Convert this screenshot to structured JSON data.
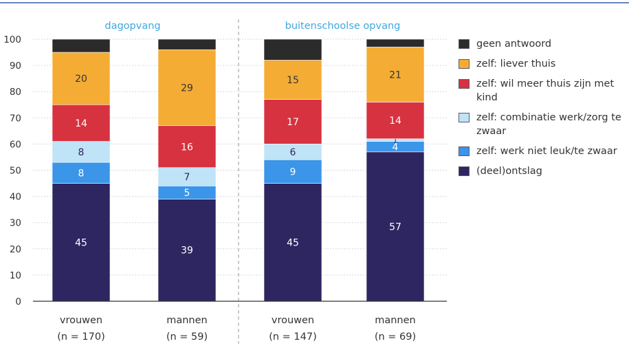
{
  "chart_data": {
    "type": "bar",
    "stacked": true,
    "ylim": [
      0,
      100
    ],
    "yticks": [
      0,
      10,
      20,
      30,
      40,
      50,
      60,
      70,
      80,
      90,
      100
    ],
    "grid": true,
    "legend_position": "right",
    "groups": [
      {
        "label": "dagopvang"
      },
      {
        "label": "buitenschoolse opvang"
      }
    ],
    "categories": [
      {
        "group": 0,
        "label": "vrouwen",
        "n": "(n = 170)"
      },
      {
        "group": 0,
        "label": "mannen",
        "n": "(n = 59)"
      },
      {
        "group": 1,
        "label": "vrouwen",
        "n": "(n = 147)"
      },
      {
        "group": 1,
        "label": "mannen",
        "n": "(n = 69)"
      }
    ],
    "series": [
      {
        "name": "(deel)ontslag",
        "color": "#2e2660",
        "label_color": "#ffffff",
        "values": [
          45,
          39,
          45,
          57
        ],
        "labels": [
          "45",
          "39",
          "45",
          "57"
        ]
      },
      {
        "name": "zelf: werk niet leuk/te zwaar",
        "color": "#3b95e8",
        "label_color": "#ffffff",
        "values": [
          8,
          5,
          9,
          4
        ],
        "labels": [
          "8",
          "5",
          "9",
          "4"
        ]
      },
      {
        "name": "zelf: combinatie werk/zorg te zwaar",
        "color": "#bfe3f7",
        "label_color": "#2e2660",
        "values": [
          8,
          7,
          6,
          1
        ],
        "labels": [
          "8",
          "7",
          "6",
          "1"
        ]
      },
      {
        "name": "zelf: wil meer thuis zijn met kind",
        "color": "#d7323f",
        "label_color": "#ffffff",
        "values": [
          14,
          16,
          17,
          14
        ],
        "labels": [
          "14",
          "16",
          "17",
          "14"
        ]
      },
      {
        "name": "zelf: liever thuis",
        "color": "#f5ac34",
        "label_color": "#333333",
        "values": [
          20,
          29,
          15,
          21
        ],
        "labels": [
          "20",
          "29",
          "15",
          "21"
        ]
      },
      {
        "name": "geen antwoord",
        "color": "#2b2b2b",
        "label_color": "#ffffff",
        "values": [
          5,
          4,
          8,
          3
        ],
        "labels": [
          "",
          "",
          "",
          ""
        ]
      }
    ],
    "legend_order": [
      5,
      4,
      3,
      2,
      1,
      0
    ],
    "colors": {
      "axis": "#333333",
      "grid": "#d9d9d9",
      "group_title": "#3ea8e0",
      "top_rule": "#3a5ba8",
      "divider": "#999999"
    }
  }
}
